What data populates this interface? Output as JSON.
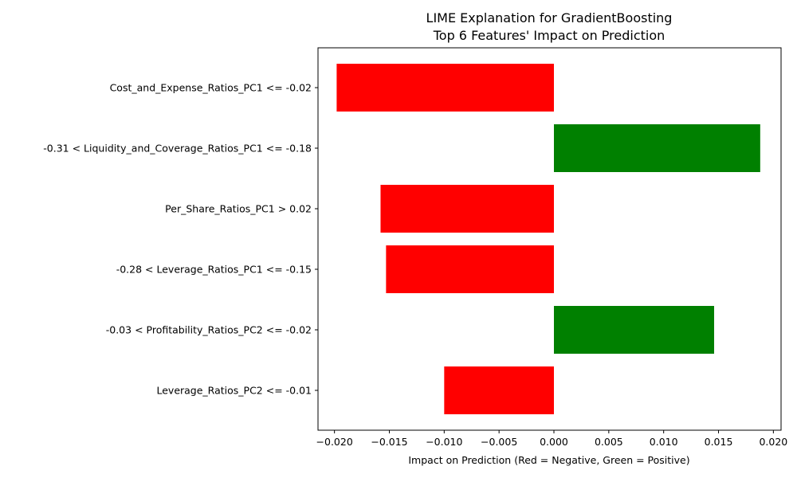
{
  "chart_data": {
    "type": "bar",
    "orientation": "horizontal",
    "title": "LIME Explanation for GradientBoosting",
    "subtitle": "Top 6 Features' Impact on Prediction",
    "xlabel": "Impact on Prediction (Red = Negative, Green = Positive)",
    "ylabel": "",
    "xlim": [
      -0.0215,
      0.0207
    ],
    "xticks": [
      -0.02,
      -0.015,
      -0.01,
      -0.005,
      0.0,
      0.005,
      0.01,
      0.015,
      0.02
    ],
    "xtick_labels": [
      "−0.020",
      "−0.015",
      "−0.010",
      "−0.005",
      "0.000",
      "0.005",
      "0.010",
      "0.015",
      "0.020"
    ],
    "grid": false,
    "legend": "none",
    "colors": {
      "negative": "#ff0000",
      "positive": "#008000"
    },
    "categories": [
      "Cost_and_Expense_Ratios_PC1 <= -0.02",
      "-0.31 < Liquidity_and_Coverage_Ratios_PC1 <= -0.18",
      "Per_Share_Ratios_PC1 > 0.02",
      "-0.28 < Leverage_Ratios_PC1 <= -0.15",
      "-0.03 < Profitability_Ratios_PC2 <= -0.02",
      "Leverage_Ratios_PC2 <= -0.01"
    ],
    "values": [
      -0.0198,
      0.0188,
      -0.0158,
      -0.0153,
      0.0146,
      -0.01
    ]
  }
}
